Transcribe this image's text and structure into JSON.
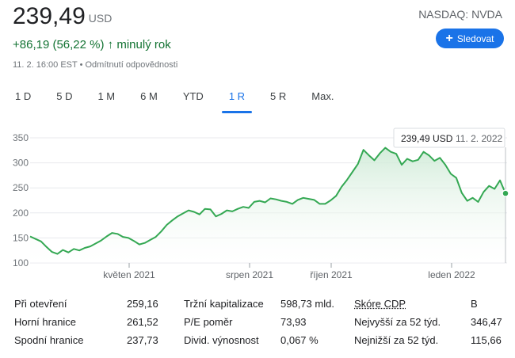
{
  "header": {
    "price": "239,49",
    "currency": "USD",
    "change": "+86,19 (56,22 %)",
    "change_arrow": "↑",
    "change_period": "minulý rok",
    "meta": "11. 2. 16:00 EST • Odmítnutí odpovědnosti",
    "ticker": "NASDAQ: NVDA",
    "follow_label": "Sledovat",
    "follow_icon": "plus-icon"
  },
  "tabs": [
    {
      "label": "1 D",
      "active": false
    },
    {
      "label": "5 D",
      "active": false
    },
    {
      "label": "1 M",
      "active": false
    },
    {
      "label": "6 M",
      "active": false
    },
    {
      "label": "YTD",
      "active": false
    },
    {
      "label": "1 R",
      "active": true
    },
    {
      "label": "5 R",
      "active": false
    },
    {
      "label": "Max.",
      "active": false
    }
  ],
  "tooltip": {
    "price": "239,49 USD",
    "date": "11. 2. 2022"
  },
  "chart_data": {
    "type": "area",
    "x_tick_labels": [
      "květen 2021",
      "srpen 2021",
      "říjen 2021",
      "leden 2022"
    ],
    "y_tick_labels": [
      "350",
      "300",
      "250",
      "200",
      "150",
      "100"
    ],
    "ylim": [
      100,
      350
    ],
    "grid": true,
    "colors": {
      "line": "#34a853",
      "fill_top": "#e6f4ea"
    },
    "series": [
      {
        "values": [
          153,
          148,
          143,
          132,
          122,
          118,
          126,
          121,
          128,
          125,
          130,
          133,
          139,
          145,
          153,
          160,
          158,
          152,
          150,
          144,
          137,
          140,
          146,
          152,
          163,
          176,
          185,
          193,
          199,
          205,
          202,
          197,
          208,
          207,
          193,
          198,
          205,
          203,
          208,
          212,
          210,
          222,
          224,
          221,
          229,
          227,
          224,
          222,
          218,
          226,
          230,
          228,
          226,
          218,
          218,
          225,
          234,
          252,
          266,
          282,
          298,
          326,
          315,
          305,
          319,
          330,
          322,
          318,
          296,
          308,
          303,
          306,
          322,
          315,
          304,
          310,
          296,
          278,
          270,
          240,
          224,
          230,
          222,
          242,
          254,
          248,
          265,
          239
        ]
      }
    ]
  },
  "stats": [
    {
      "label": "Při otevření",
      "value": "259,16"
    },
    {
      "label": "Horní hranice",
      "value": "261,52"
    },
    {
      "label": "Spodní hranice",
      "value": "237,73"
    },
    {
      "label": "Tržní kapitalizace",
      "value": "598,73 mld."
    },
    {
      "label": "P/E poměr",
      "value": "73,93"
    },
    {
      "label": "Divid. výnosnost",
      "value": "0,067 %"
    },
    {
      "label": "Skóre CDP",
      "value": "B"
    },
    {
      "label": "Nejvyšší za 52 týd.",
      "value": "346,47"
    },
    {
      "label": "Nejnižší za 52 týd.",
      "value": "115,66"
    }
  ]
}
